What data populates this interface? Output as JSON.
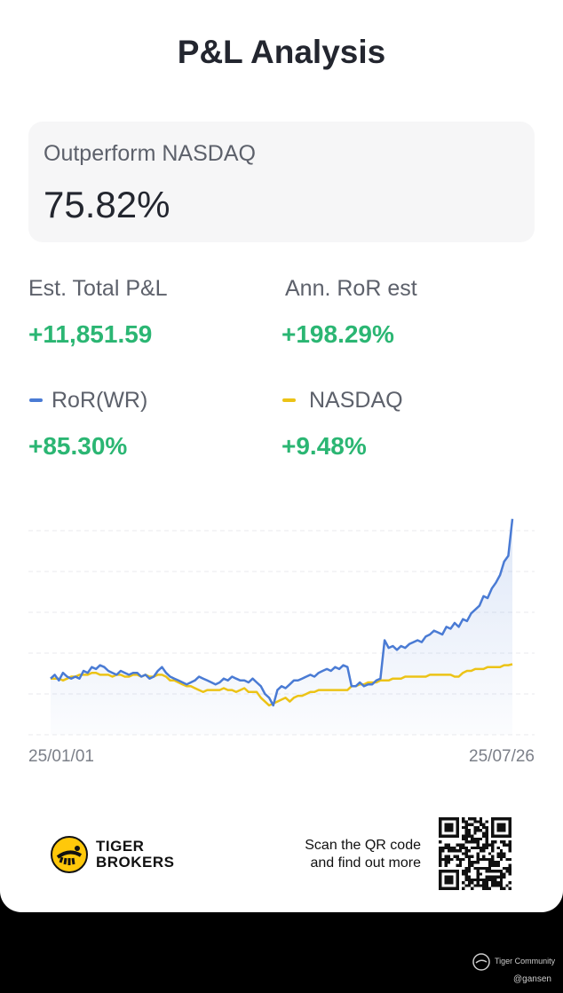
{
  "title": "P&L Analysis",
  "outperform": {
    "label": "Outperform NASDAQ",
    "value": "75.82%"
  },
  "stats": {
    "total_pl": {
      "label": "Est. Total P&L",
      "value": "+11,851.59"
    },
    "ann_ror": {
      "label": "Ann. RoR est",
      "value": "+198.29%"
    },
    "ror_wr": {
      "label": "RoR(WR)",
      "value": "+85.30%"
    },
    "nasdaq": {
      "label": "NASDAQ",
      "value": "+9.48%"
    }
  },
  "colors": {
    "ror": "#4a7bd4",
    "nasdaq": "#ecc316",
    "positive": "#2bb673",
    "text": "#23262f",
    "muted": "#5d616b"
  },
  "chart_data": {
    "type": "line",
    "x_start": "25/01/01",
    "x_end": "25/07/26",
    "grid": true,
    "legend": "none",
    "series": [
      {
        "name": "RoR(WR)",
        "color": "#4a7bd4",
        "values": [
          2,
          4,
          1,
          5,
          3,
          2,
          3,
          2,
          6,
          5,
          8,
          7,
          9,
          8,
          6,
          5,
          4,
          6,
          5,
          4,
          5,
          5,
          3,
          4,
          2,
          3,
          6,
          8,
          5,
          3,
          2,
          1,
          0,
          -1,
          0,
          1,
          3,
          2,
          1,
          0,
          -1,
          0,
          2,
          1,
          3,
          2,
          1,
          1,
          0,
          2,
          0,
          -2,
          -6,
          -8,
          -12,
          -4,
          -2,
          -3,
          -1,
          1,
          1,
          2,
          3,
          4,
          3,
          5,
          6,
          7,
          6,
          8,
          7,
          9,
          8,
          -2,
          -2,
          0,
          -2,
          -1,
          -1,
          1,
          2,
          22,
          18,
          19,
          17,
          19,
          18,
          20,
          21,
          22,
          21,
          24,
          25,
          27,
          26,
          25,
          29,
          28,
          31,
          29,
          33,
          32,
          36,
          38,
          40,
          45,
          44,
          49,
          52,
          56,
          63,
          66,
          85.3
        ]
      },
      {
        "name": "NASDAQ",
        "color": "#ecc316",
        "values": [
          2,
          2,
          2,
          1,
          2,
          3,
          3,
          4,
          4,
          4,
          5,
          5,
          4,
          4,
          4,
          3,
          4,
          4,
          3,
          3,
          4,
          4,
          3,
          4,
          3,
          3,
          4,
          4,
          3,
          1,
          1,
          0,
          -1,
          -2,
          -2,
          -3,
          -4,
          -5,
          -4,
          -4,
          -4,
          -4,
          -3,
          -4,
          -4,
          -5,
          -4,
          -3,
          -5,
          -5,
          -5,
          -8,
          -10,
          -12,
          -11,
          -10,
          -9,
          -8,
          -10,
          -8,
          -7,
          -7,
          -6,
          -5,
          -5,
          -4,
          -4,
          -4,
          -4,
          -4,
          -4,
          -4,
          -4,
          -2,
          -2,
          -1,
          -1,
          0,
          0,
          0,
          1,
          1,
          1,
          2,
          2,
          2,
          3,
          3,
          3,
          3,
          3,
          3,
          4,
          4,
          4,
          4,
          4,
          4,
          3,
          3,
          5,
          6,
          6,
          7,
          7,
          7,
          8,
          8,
          8,
          8,
          9,
          9,
          9.48
        ]
      }
    ]
  },
  "footer": {
    "brand_line1": "TIGER",
    "brand_line2": "BROKERS",
    "scan_line1": "Scan the QR code",
    "scan_line2": "and find out more",
    "community": "Tiger Community",
    "handle": "@gansen"
  }
}
